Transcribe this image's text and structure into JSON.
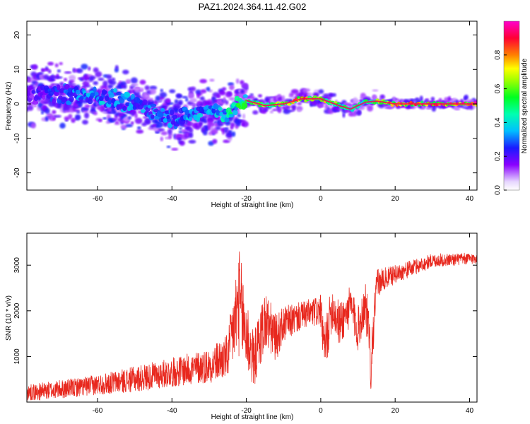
{
  "title": "PAZ1.2024.364.11.42.G02",
  "chart_data": [
    {
      "type": "heatmap",
      "name": "spectrogram",
      "xlabel": "Height of straight line (km)",
      "ylabel": "Frequency (Hz)",
      "xlim": [
        -79,
        42
      ],
      "ylim": [
        -25,
        24
      ],
      "xticks": [
        -60,
        -40,
        -20,
        0,
        20,
        40
      ],
      "yticks": [
        -20,
        -10,
        0,
        10,
        20
      ],
      "colorbar": {
        "label": "Normalized spectral amplitude",
        "range": [
          0,
          1
        ],
        "ticks": [
          0.0,
          0.2,
          0.4,
          0.6,
          0.8
        ],
        "tick_labels": [
          "0.0",
          "0.2",
          "0.4",
          "0.6",
          "0.8"
        ],
        "colormap": [
          "#ffffff",
          "#d9bfff",
          "#8a00ff",
          "#1a1aff",
          "#00e0ff",
          "#00ff40",
          "#ffff00",
          "#ff8000",
          "#ff0033",
          "#ff00cc"
        ]
      },
      "ridge": {
        "x": [
          -79,
          -70,
          -60,
          -50,
          -40,
          -30,
          -25,
          -20,
          -15,
          -10,
          -5,
          0,
          5,
          8,
          12,
          15,
          20,
          30,
          42
        ],
        "y": [
          3.0,
          3.0,
          2.0,
          0.0,
          -4.0,
          -2.0,
          -3.0,
          1.0,
          -0.5,
          0.0,
          1.5,
          1.5,
          -0.5,
          -1.5,
          0.5,
          0.8,
          0.0,
          0.0,
          0.0
        ],
        "peak_amplitude": [
          0.2,
          0.3,
          0.4,
          0.35,
          0.35,
          0.4,
          0.5,
          0.6,
          0.7,
          0.75,
          0.9,
          0.8,
          0.6,
          0.5,
          0.6,
          0.7,
          0.85,
          0.9,
          0.95
        ]
      },
      "grid": false
    },
    {
      "type": "line",
      "name": "snr",
      "xlabel": "Height of straight line (km)",
      "ylabel": "SNR (10 * v/v)",
      "xlim": [
        -79,
        42
      ],
      "ylim": [
        0,
        3700
      ],
      "xticks": [
        -60,
        -40,
        -20,
        0,
        20,
        40
      ],
      "yticks": [
        1000,
        2000,
        3000
      ],
      "color": "#e8281e",
      "envelope": {
        "x": [
          -79,
          -70,
          -60,
          -50,
          -40,
          -30,
          -25,
          -22,
          -20,
          -18,
          -15,
          -12,
          -10,
          -5,
          0,
          1,
          3,
          5,
          8,
          10,
          12,
          13.5,
          15,
          20,
          30,
          42
        ],
        "y": [
          200,
          280,
          380,
          500,
          650,
          800,
          1000,
          2200,
          1500,
          900,
          1800,
          1400,
          1700,
          1900,
          2000,
          1100,
          2100,
          1700,
          2100,
          1600,
          2200,
          900,
          2600,
          2800,
          3100,
          3150
        ],
        "spread": [
          180,
          200,
          220,
          280,
          320,
          380,
          500,
          1200,
          900,
          600,
          700,
          500,
          400,
          300,
          350,
          600,
          500,
          500,
          450,
          500,
          500,
          700,
          300,
          200,
          150,
          120
        ]
      },
      "grid": false
    }
  ]
}
